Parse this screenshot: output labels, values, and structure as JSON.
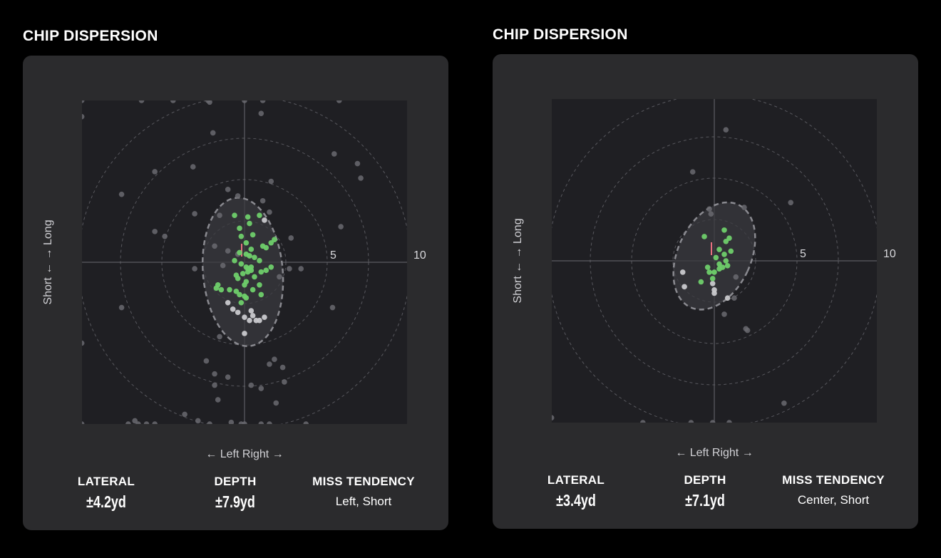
{
  "chart_data": [
    {
      "type": "scatter",
      "title": "CHIP DISPERSION",
      "xlabel": "← Left Right →",
      "ylabel": "Short ← → Long",
      "xlim": [
        -10,
        10
      ],
      "ylim": [
        -10,
        10
      ],
      "ring_labels": [
        "5",
        "10"
      ],
      "ellipse": {
        "cx": -0.1,
        "cy": -0.6,
        "rx": 2.4,
        "ry": 4.6,
        "rotation": -5
      },
      "series": [
        {
          "color": "#6fcf6a",
          "x": [
            -0.6,
            0.2,
            0.9,
            0.3,
            -0.3,
            0.5,
            1.8,
            1.6,
            1.1,
            1.3,
            0.4,
            -0.3,
            0.1,
            0.3,
            0.6,
            0.9,
            -0.2,
            0.1,
            0.2,
            0.4,
            0.2,
            -0.1,
            -0.5,
            0.6,
            1.0,
            1.3,
            -0.4,
            0.1,
            0.0,
            -1.6,
            -1.7,
            -1.4,
            -0.9,
            -0.5,
            -0.3,
            0.0,
            0.1,
            0.5,
            0.9,
            1.6,
            -0.6,
            -0.2,
            0.1,
            1.0,
            0.4,
            -0.2
          ],
          "y": [
            2.9,
            2.8,
            2.9,
            2.4,
            2.1,
            1.7,
            1.4,
            1.2,
            1.0,
            0.9,
            0.8,
            0.6,
            0.5,
            0.4,
            0.3,
            0.1,
            -0.1,
            -0.3,
            -0.4,
            -0.5,
            -0.6,
            -0.7,
            -0.8,
            -0.9,
            -0.6,
            -0.5,
            -1.0,
            -1.2,
            -1.4,
            -1.4,
            -1.6,
            -1.7,
            -1.7,
            -1.8,
            -2.0,
            -2.1,
            -2.2,
            -1.7,
            -1.4,
            -0.3,
            0.1,
            1.6,
            1.2,
            -2.0,
            -0.3,
            -2.5
          ]
        },
        {
          "color": "#c9c9cc",
          "x": [
            1.2,
            -1.0,
            -0.7,
            -0.4,
            0.0,
            0.3,
            0.5,
            0.7,
            0.9,
            1.2,
            0.0,
            0.4
          ],
          "y": [
            2.6,
            -2.5,
            -2.9,
            -3.1,
            -3.4,
            -3.6,
            -3.3,
            -3.6,
            -3.6,
            -3.4,
            -4.4,
            -3.0
          ]
        },
        {
          "color": "#6a6a70",
          "x": [
            -9.8,
            -6.2,
            -4.3,
            -2.2,
            -2.1,
            0.0,
            1.1,
            1.0,
            5.7,
            -9.8,
            -1.9,
            5.4,
            -5.4,
            -3.1,
            7.0,
            6.8,
            1.6,
            -1.0,
            -7.4,
            1.1,
            -0.4,
            1.5,
            -3.0,
            -1.5,
            -5.4,
            5.8,
            -4.8,
            -1.8,
            -1.0,
            -0.4,
            0.3,
            2.8,
            -1.3,
            2.1,
            5.3,
            3.4,
            -3.0,
            2.7,
            -7.4,
            -9.8,
            -1.5,
            -2.3,
            -1.8,
            -1.0,
            -1.8,
            1.0,
            1.8,
            1.5,
            2.3,
            2.4,
            0.4,
            1.9,
            -1.6,
            -3.6,
            -6.6,
            -7.0,
            -6.4,
            -5.9,
            -5.4,
            -2.8,
            -2.1,
            -0.8,
            -0.2,
            0.0,
            1.0,
            1.5,
            3.7,
            -9.8
          ],
          "y": [
            10.0,
            10.0,
            10.0,
            10.0,
            9.9,
            10.0,
            10.0,
            9.2,
            10.0,
            9.0,
            8.0,
            6.7,
            5.6,
            5.9,
            5.2,
            6.1,
            5.0,
            4.5,
            4.2,
            3.8,
            4.1,
            3.1,
            3.0,
            2.9,
            1.9,
            2.2,
            1.6,
            1.0,
            0.7,
            0.5,
            0.4,
            1.5,
            -0.2,
            -0.9,
            -2.8,
            -0.4,
            -0.4,
            -0.4,
            -2.8,
            -5.0,
            -4.6,
            -6.1,
            -6.9,
            -7.1,
            -7.6,
            -7.8,
            -6.0,
            -6.3,
            -6.5,
            -7.4,
            -7.6,
            -8.7,
            -8.5,
            -9.4,
            -9.8,
            -10.0,
            -10.0,
            -10.0,
            -10.0,
            -9.8,
            -10.0,
            -9.9,
            -10.0,
            -10.0,
            -10.0,
            -10.0,
            -10.0,
            -10.0
          ]
        }
      ]
    },
    {
      "type": "scatter",
      "title": "CHIP DISPERSION",
      "xlabel": "← Left Right →",
      "ylabel": "Short ← → Long",
      "xlim": [
        -10,
        10
      ],
      "ylim": [
        -10,
        10
      ],
      "ring_labels": [
        "5",
        "10"
      ],
      "ellipse": {
        "cx": 0.0,
        "cy": 0.3,
        "rx": 2.2,
        "ry": 3.5,
        "rotation": 25
      },
      "series": [
        {
          "color": "#6fcf6a",
          "x": [
            0.6,
            0.9,
            0.7,
            1.0,
            0.6,
            0.1,
            0.7,
            -0.6,
            0.3,
            -0.4,
            0.5,
            0.3,
            0.0,
            -0.3,
            0.8,
            0.3,
            -0.1,
            -0.8
          ],
          "y": [
            1.9,
            1.4,
            1.2,
            0.6,
            0.4,
            0.2,
            0.0,
            1.5,
            -0.2,
            -0.4,
            -0.4,
            -0.5,
            -0.7,
            -0.7,
            -0.3,
            0.7,
            -1.1,
            -1.3
          ],
          "note": "green"
        },
        {
          "color": "#c9c9cc",
          "x": [
            -1.9,
            -1.8,
            0.0,
            0.0,
            0.8,
            -0.1
          ],
          "y": [
            -0.7,
            -1.6,
            -1.8,
            -2.0,
            -2.3,
            -1.4
          ]
        },
        {
          "color": "#6a6a70",
          "x": [
            0.7,
            -1.3,
            -0.3,
            -0.2,
            1.8,
            4.6,
            1.3,
            1.2,
            1.9,
            2.0,
            0.6,
            4.2,
            -9.8,
            -4.3,
            -1.4,
            -0.1,
            0.9
          ],
          "y": [
            8.1,
            5.5,
            3.2,
            2.9,
            3.3,
            3.6,
            -1.0,
            -2.3,
            -4.2,
            -4.3,
            -3.3,
            -8.8,
            -9.7,
            -10.0,
            -10.0,
            -10.0,
            -10.0
          ]
        }
      ]
    }
  ],
  "panels": [
    {
      "title": "CHIP DISPERSION",
      "lateral": {
        "label": "LATERAL",
        "value": "±4.2yd"
      },
      "depth": {
        "label": "DEPTH",
        "value": "±7.9yd"
      },
      "miss": {
        "label": "MISS TENDENCY",
        "value": "Left, Short"
      }
    },
    {
      "title": "CHIP DISPERSION",
      "lateral": {
        "label": "LATERAL",
        "value": "±3.4yd"
      },
      "depth": {
        "label": "DEPTH",
        "value": "±7.1yd"
      },
      "miss": {
        "label": "MISS TENDENCY",
        "value": "Center, Short"
      }
    }
  ],
  "colors": {
    "page_bg": "#000000",
    "card_bg": "#2b2b2d",
    "plot_bg": "#1f1f23",
    "ring": "#58585e",
    "axis": "#6a6a70",
    "ellipse_fill": "#3a3a3f",
    "ellipse_stroke": "#8a8a90",
    "flag": "#e8707f"
  }
}
